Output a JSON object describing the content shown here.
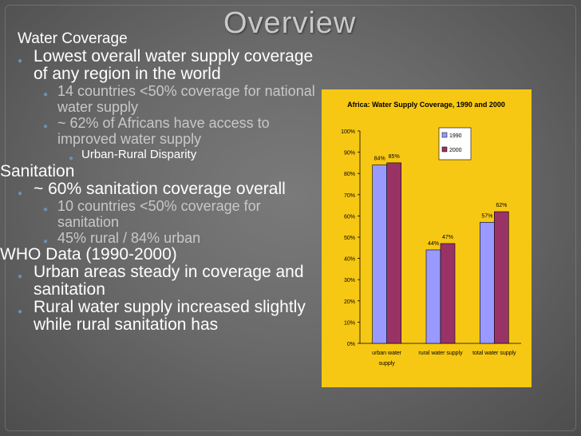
{
  "slide": {
    "title": "Overview",
    "water_heading": "Water Coverage",
    "water_bullet": "Lowest overall water supply coverage of any region in the world",
    "water_sub": [
      "14 countries <50% coverage for national water supply",
      "~ 62% of Africans have access to improved water supply"
    ],
    "water_sub2": "Urban-Rural Disparity",
    "sanitation_heading": "Sanitation",
    "sanitation_bullet": "~ 60% sanitation coverage overall",
    "sanitation_sub": [
      "10 countries <50% coverage for sanitation",
      " 45% rural / 84% urban"
    ],
    "who_heading": "WHO Data (1990-2000)",
    "who_bullets": [
      "Urban areas steady in coverage and sanitation",
      " Rural water supply increased slightly while rural sanitation has"
    ]
  },
  "colors": {
    "series_1990": "#9999ff",
    "series_2000": "#993366",
    "chart_bg": "#f7c813"
  },
  "chart_data": {
    "type": "bar",
    "title": "Africa: Water Supply Coverage, 1990 and 2000",
    "categories": [
      "urban water supply",
      "rural water supply",
      "total water supply"
    ],
    "series": [
      {
        "name": "1990",
        "values": [
          84,
          44,
          57
        ]
      },
      {
        "name": "2000",
        "values": [
          85,
          47,
          62
        ]
      }
    ],
    "data_labels": [
      [
        "84%",
        "85%"
      ],
      [
        "44%",
        "47%"
      ],
      [
        "57%",
        "62%"
      ]
    ],
    "ylim": [
      0,
      100
    ],
    "yticks": [
      "0%",
      "10%",
      "20%",
      "30%",
      "40%",
      "50%",
      "60%",
      "70%",
      "80%",
      "90%",
      "100%"
    ],
    "legend": "top-right"
  }
}
